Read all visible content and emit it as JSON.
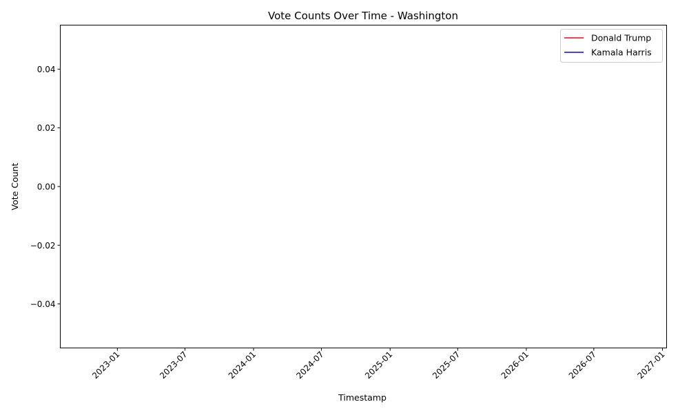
{
  "chart_data": {
    "type": "line",
    "title": "Vote Counts Over Time - Washington",
    "xlabel": "Timestamp",
    "ylabel": "Vote Count",
    "x_axis_kind": "date",
    "x_ticks": [
      "2023-01",
      "2023-07",
      "2024-01",
      "2024-07",
      "2025-01",
      "2025-07",
      "2026-01",
      "2026-07",
      "2027-01"
    ],
    "xlim": [
      "2022-08-01",
      "2027-01-12"
    ],
    "y_ticks": [
      0.04,
      0.02,
      0.0,
      -0.02,
      -0.04
    ],
    "y_tick_labels": [
      "0.04",
      "0.02",
      "0.00",
      "−0.02",
      "−0.04"
    ],
    "ylim": [
      -0.055,
      0.055
    ],
    "grid": false,
    "legend_position": "top-right",
    "series": [
      {
        "name": "Donald Trump",
        "color": "#ff0000",
        "x": [],
        "values": []
      },
      {
        "name": "Kamala Harris",
        "color": "#0000ff",
        "x": [],
        "values": []
      }
    ]
  }
}
